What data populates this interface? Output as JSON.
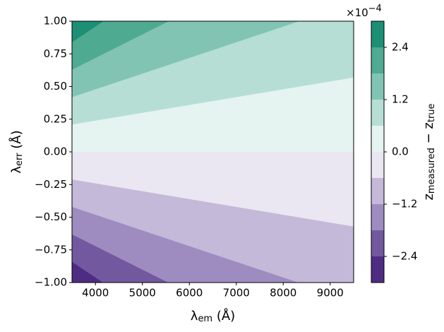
{
  "chart_data": {
    "type": "contour",
    "xlabel": {
      "symbol": "λ",
      "sub": "em",
      "unit": " (Å)"
    },
    "ylabel": {
      "symbol": "λ",
      "sub": "err",
      "unit": " (Å)"
    },
    "colorbar_label": {
      "first": "z",
      "first_sub": "measured",
      "op": " − ",
      "second": "z",
      "second_sub": "true"
    },
    "colorbar_scale": {
      "base": "×10",
      "exponent": "−4"
    },
    "xlim": [
      3500,
      9500
    ],
    "xticks": [
      4000,
      5000,
      6000,
      7000,
      8000,
      9000
    ],
    "ylim": [
      -1,
      1
    ],
    "yticks": [
      {
        "value": -1,
        "label": "−1.00"
      },
      {
        "value": -0.75,
        "label": "−0.75"
      },
      {
        "value": -0.5,
        "label": "−0.50"
      },
      {
        "value": -0.25,
        "label": "−0.25"
      },
      {
        "value": 0,
        "label": "0.00"
      },
      {
        "value": 0.25,
        "label": "0.25"
      },
      {
        "value": 0.5,
        "label": "0.50"
      },
      {
        "value": 0.75,
        "label": "0.75"
      },
      {
        "value": 1,
        "label": "1.00"
      }
    ],
    "levels": [
      -3,
      -2.4,
      -1.8,
      -1.2,
      -0.6,
      0,
      0.6,
      1.2,
      1.8,
      2.4,
      3
    ],
    "colors": [
      "#4f2c84",
      "#72599f",
      "#9e8cc0",
      "#c4b9d8",
      "#eae6f2",
      "#e6f4f1",
      "#b6ded5",
      "#82c4b3",
      "#4eaa90",
      "#1c8f74"
    ],
    "clim": [
      -3,
      3
    ],
    "cticks": [
      {
        "value": -2.4,
        "label": "−2.4"
      },
      {
        "value": -1.2,
        "label": "−1.2"
      },
      {
        "value": 0,
        "label": "0.0"
      },
      1.2,
      2.4
    ]
  }
}
